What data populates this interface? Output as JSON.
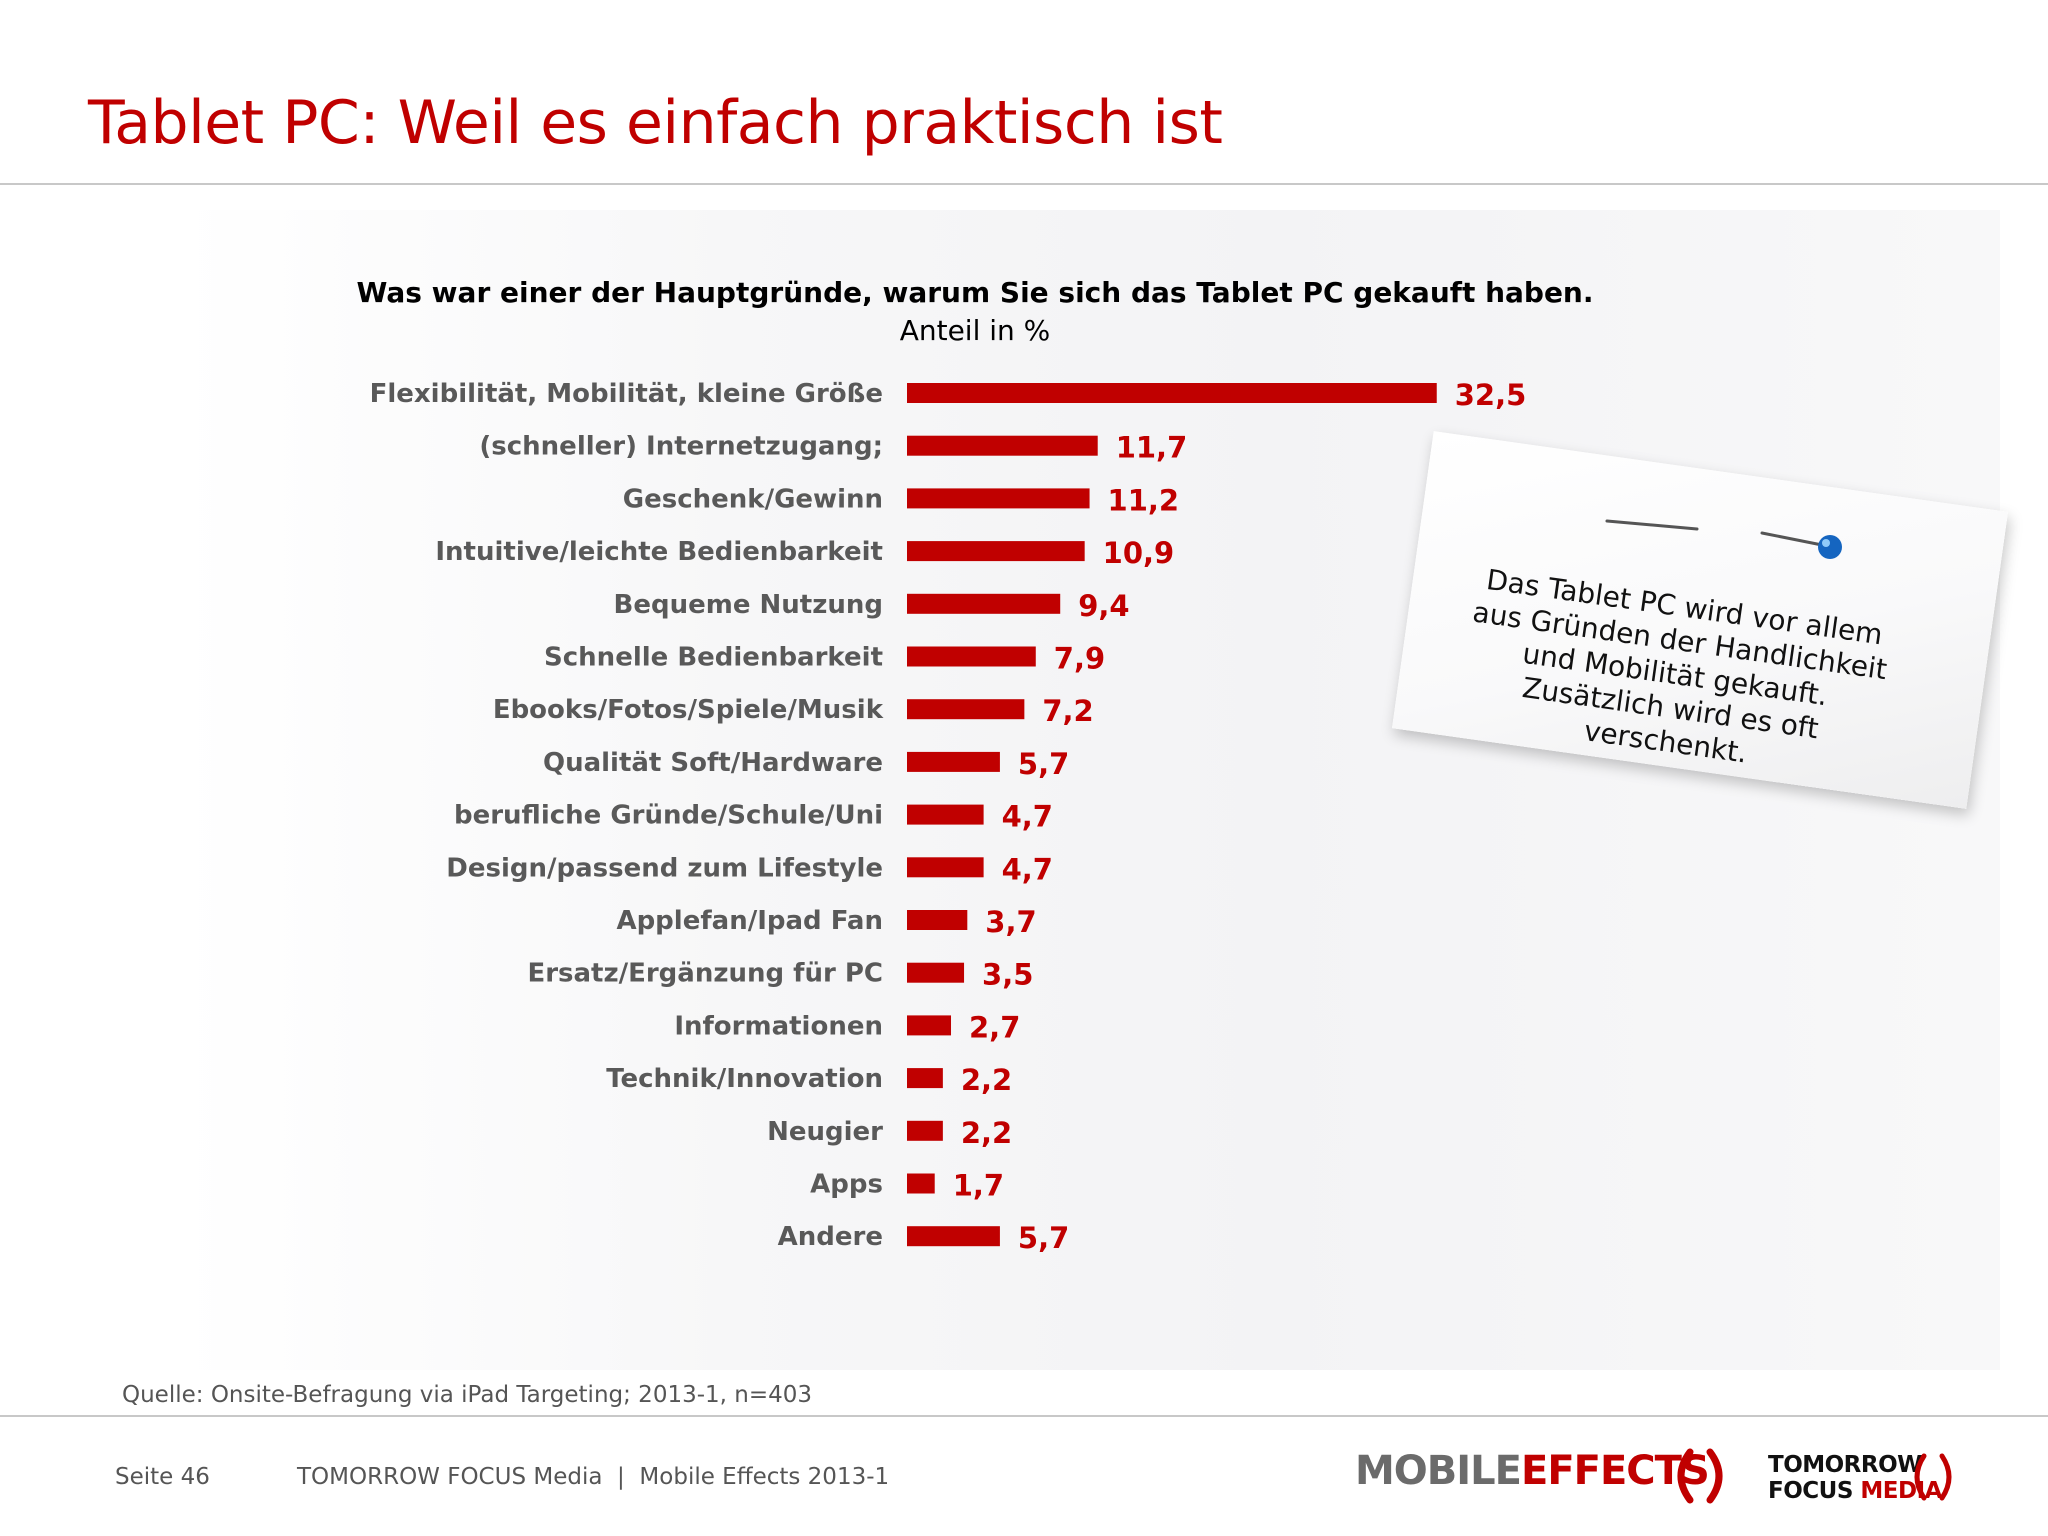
{
  "page": {
    "title": "Tablet PC: Weil es einfach praktisch ist"
  },
  "chart_data": {
    "type": "bar",
    "orientation": "horizontal",
    "title": "Was war einer der Hauptgründe, warum Sie sich das Tablet PC gekauft haben.",
    "subtitle": "Anteil in %",
    "categories": [
      "Flexibilität, Mobilität, kleine Größe",
      "(schneller) Internetzugang;",
      "Geschenk/Gewinn",
      "Intuitive/leichte Bedienbarkeit",
      "Bequeme Nutzung",
      "Schnelle Bedienbarkeit",
      "Ebooks/Fotos/Spiele/Musik",
      "Qualität Soft/Hardware",
      "berufliche Gründe/Schule/Uni",
      "Design/passend zum Lifestyle",
      "Applefan/Ipad Fan",
      "Ersatz/Ergänzung für PC",
      "Informationen",
      "Technik/Innovation",
      "Neugier",
      "Apps",
      "Andere"
    ],
    "values": [
      32.5,
      11.7,
      11.2,
      10.9,
      9.4,
      7.9,
      7.2,
      5.7,
      4.7,
      4.7,
      3.7,
      3.5,
      2.7,
      2.2,
      2.2,
      1.7,
      5.7
    ],
    "value_labels": [
      "32,5",
      "11,7",
      "11,2",
      "10,9",
      "9,4",
      "7,9",
      "7,2",
      "5,7",
      "4,7",
      "4,7",
      "3,7",
      "3,5",
      "2,7",
      "2,2",
      "2,2",
      "1,7",
      "5,7"
    ],
    "bar_color": "#c00000",
    "label_color": "#c00000",
    "category_color": "#595959",
    "legend": "none",
    "grid": false
  },
  "note": {
    "lines": [
      "Das Tablet PC wird vor allem",
      "aus Gründen der Handlichkeit",
      "und Mobilität gekauft.",
      "Zusätzlich wird es oft",
      "verschenkt."
    ],
    "icons": [
      "pin-icon",
      "pin-icon"
    ]
  },
  "source": "Quelle: Onsite-Befragung via iPad Targeting; 2013-1, n=403",
  "footer": {
    "page": "Seite 46",
    "company": "TOMORROW FOCUS Media  |  Mobile Effects 2013-1"
  },
  "logos": {
    "mobile": "MOBILE",
    "effects": "EFFECTS",
    "tomorrow": "TOMORROW",
    "focus": "FOCUS",
    "media": "MEDIA"
  },
  "colors": {
    "accent": "#c00000",
    "text_gray": "#595959",
    "rule": "#c8c8c8"
  }
}
